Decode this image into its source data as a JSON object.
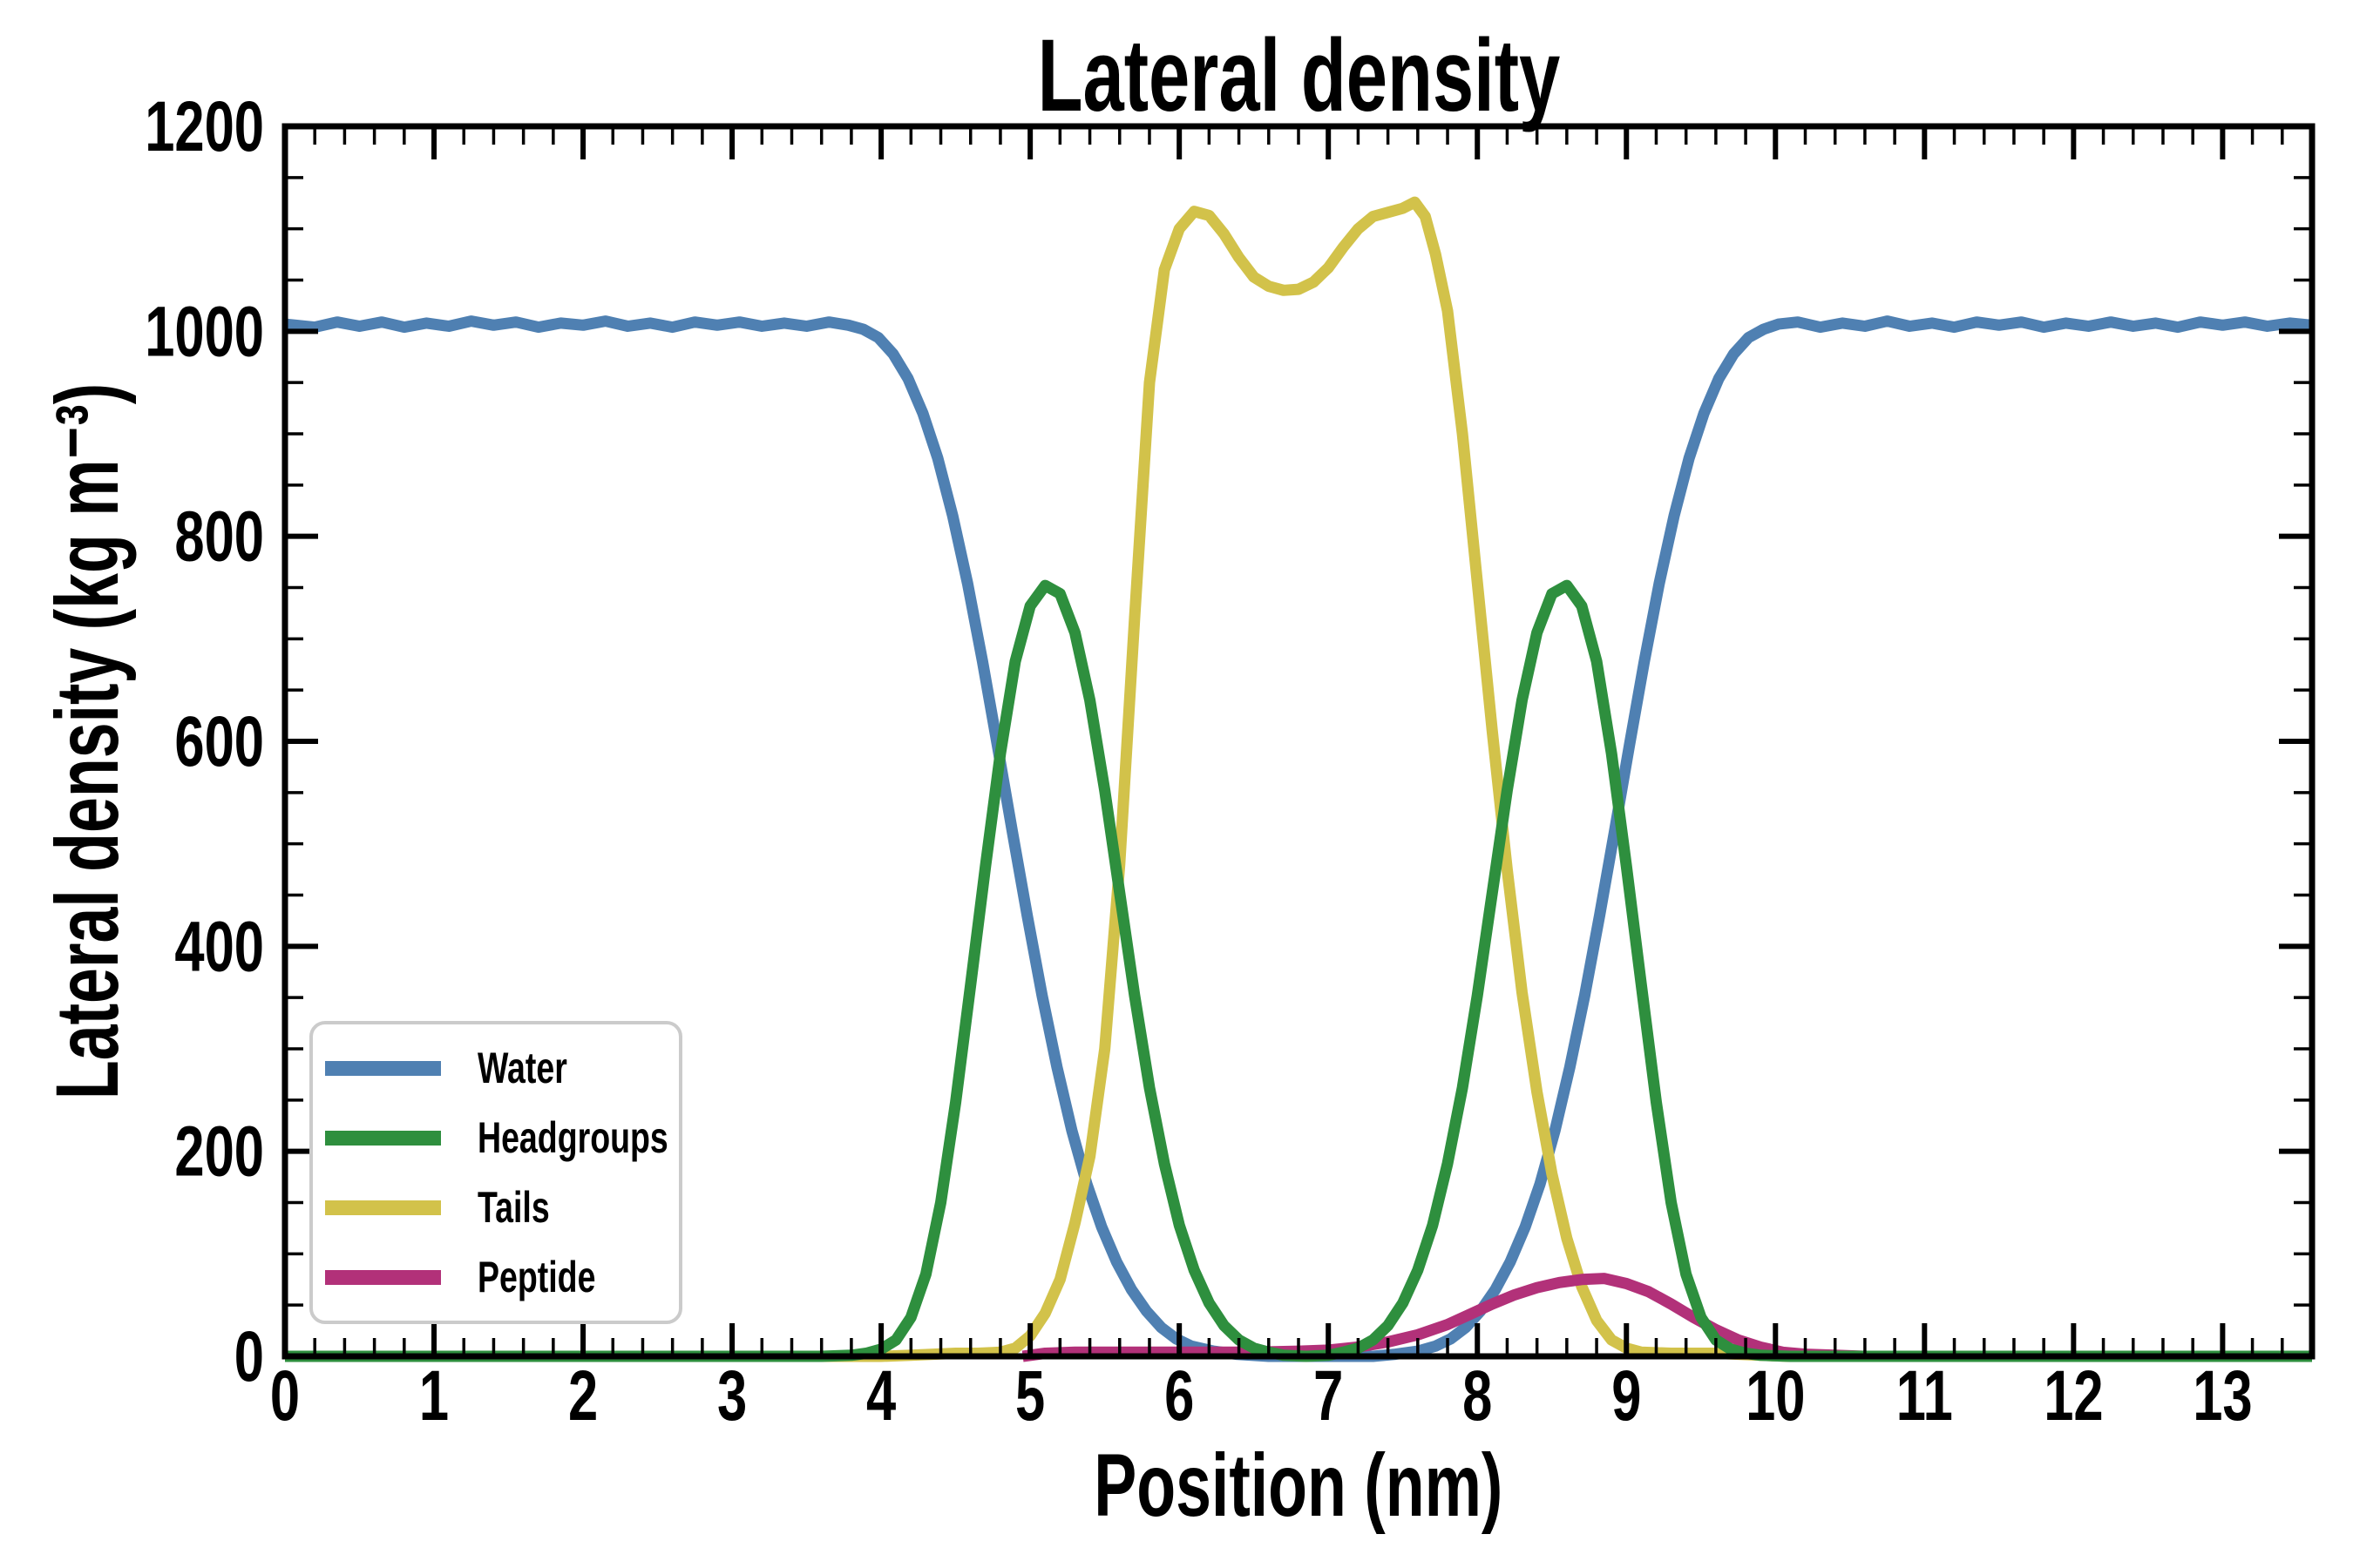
{
  "chart_data": {
    "type": "line",
    "title": "Lateral density",
    "xlabel": "Position (nm)",
    "ylabel": "Lateral density (kg m⁻³)",
    "xlim": [
      0,
      13.6
    ],
    "ylim": [
      0,
      1200
    ],
    "x_major_ticks": [
      0,
      1,
      2,
      3,
      4,
      5,
      6,
      7,
      8,
      9,
      10,
      11,
      12,
      13
    ],
    "x_minor_step": 0.2,
    "y_major_ticks": [
      0,
      200,
      400,
      600,
      800,
      1000,
      1200
    ],
    "y_minor_step": 50,
    "grid": false,
    "legend_position": "lower left",
    "axis_color": "#000000",
    "background_color": "#ffffff",
    "series": [
      {
        "name": "Water",
        "color": "#4F80B2",
        "z": 1,
        "points": [
          [
            0,
            1007
          ],
          [
            0.2,
            1004
          ],
          [
            0.35,
            1009
          ],
          [
            0.5,
            1005
          ],
          [
            0.65,
            1009
          ],
          [
            0.8,
            1004
          ],
          [
            0.95,
            1008
          ],
          [
            1.1,
            1005
          ],
          [
            1.25,
            1010
          ],
          [
            1.4,
            1006
          ],
          [
            1.55,
            1009
          ],
          [
            1.7,
            1004
          ],
          [
            1.85,
            1008
          ],
          [
            2,
            1006
          ],
          [
            2.15,
            1010
          ],
          [
            2.3,
            1005
          ],
          [
            2.45,
            1008
          ],
          [
            2.6,
            1004
          ],
          [
            2.75,
            1009
          ],
          [
            2.9,
            1006
          ],
          [
            3.05,
            1009
          ],
          [
            3.2,
            1005
          ],
          [
            3.35,
            1008
          ],
          [
            3.5,
            1005
          ],
          [
            3.65,
            1009
          ],
          [
            3.78,
            1006
          ],
          [
            3.88,
            1002
          ],
          [
            3.98,
            994
          ],
          [
            4.08,
            978
          ],
          [
            4.18,
            954
          ],
          [
            4.28,
            920
          ],
          [
            4.38,
            876
          ],
          [
            4.48,
            820
          ],
          [
            4.58,
            754
          ],
          [
            4.68,
            678
          ],
          [
            4.78,
            596
          ],
          [
            4.88,
            512
          ],
          [
            4.98,
            430
          ],
          [
            5.08,
            352
          ],
          [
            5.18,
            282
          ],
          [
            5.28,
            220
          ],
          [
            5.38,
            168
          ],
          [
            5.48,
            126
          ],
          [
            5.58,
            92
          ],
          [
            5.68,
            65
          ],
          [
            5.78,
            44
          ],
          [
            5.88,
            28
          ],
          [
            5.98,
            17
          ],
          [
            6.08,
            10
          ],
          [
            6.23,
            5
          ],
          [
            6.38,
            2
          ],
          [
            6.6,
            0
          ],
          [
            7,
            0
          ],
          [
            7.3,
            0
          ],
          [
            7.45,
            2
          ],
          [
            7.6,
            5
          ],
          [
            7.72,
            10
          ],
          [
            7.82,
            17
          ],
          [
            7.92,
            28
          ],
          [
            8.02,
            44
          ],
          [
            8.12,
            65
          ],
          [
            8.22,
            92
          ],
          [
            8.32,
            126
          ],
          [
            8.42,
            168
          ],
          [
            8.52,
            220
          ],
          [
            8.62,
            282
          ],
          [
            8.72,
            352
          ],
          [
            8.82,
            430
          ],
          [
            8.92,
            512
          ],
          [
            9.02,
            596
          ],
          [
            9.12,
            678
          ],
          [
            9.22,
            754
          ],
          [
            9.32,
            820
          ],
          [
            9.42,
            876
          ],
          [
            9.52,
            920
          ],
          [
            9.62,
            954
          ],
          [
            9.72,
            978
          ],
          [
            9.82,
            994
          ],
          [
            9.92,
            1002
          ],
          [
            10.02,
            1007
          ],
          [
            10.15,
            1009
          ],
          [
            10.3,
            1004
          ],
          [
            10.45,
            1008
          ],
          [
            10.6,
            1005
          ],
          [
            10.75,
            1010
          ],
          [
            10.9,
            1005
          ],
          [
            11.05,
            1008
          ],
          [
            11.2,
            1004
          ],
          [
            11.35,
            1009
          ],
          [
            11.5,
            1006
          ],
          [
            11.65,
            1009
          ],
          [
            11.8,
            1004
          ],
          [
            11.95,
            1008
          ],
          [
            12.1,
            1005
          ],
          [
            12.25,
            1009
          ],
          [
            12.4,
            1005
          ],
          [
            12.55,
            1008
          ],
          [
            12.7,
            1004
          ],
          [
            12.85,
            1009
          ],
          [
            13,
            1006
          ],
          [
            13.15,
            1009
          ],
          [
            13.3,
            1005
          ],
          [
            13.45,
            1008
          ],
          [
            13.6,
            1006
          ]
        ]
      },
      {
        "name": "Headgroups",
        "color": "#2E8F3E",
        "z": 4,
        "points": [
          [
            0,
            0
          ],
          [
            1,
            0
          ],
          [
            2,
            0
          ],
          [
            3,
            0
          ],
          [
            3.6,
            0
          ],
          [
            3.8,
            1
          ],
          [
            3.9,
            3
          ],
          [
            4,
            7
          ],
          [
            4.1,
            16
          ],
          [
            4.2,
            38
          ],
          [
            4.3,
            80
          ],
          [
            4.4,
            150
          ],
          [
            4.5,
            248
          ],
          [
            4.6,
            362
          ],
          [
            4.7,
            478
          ],
          [
            4.8,
            588
          ],
          [
            4.9,
            678
          ],
          [
            5,
            732
          ],
          [
            5.1,
            752
          ],
          [
            5.2,
            744
          ],
          [
            5.3,
            706
          ],
          [
            5.4,
            640
          ],
          [
            5.5,
            552
          ],
          [
            5.6,
            452
          ],
          [
            5.7,
            352
          ],
          [
            5.8,
            262
          ],
          [
            5.9,
            188
          ],
          [
            6,
            128
          ],
          [
            6.1,
            84
          ],
          [
            6.2,
            52
          ],
          [
            6.3,
            30
          ],
          [
            6.4,
            16
          ],
          [
            6.5,
            8
          ],
          [
            6.6,
            4
          ],
          [
            6.7,
            1
          ],
          [
            6.85,
            0
          ],
          [
            7,
            1
          ],
          [
            7.1,
            4
          ],
          [
            7.2,
            8
          ],
          [
            7.3,
            16
          ],
          [
            7.4,
            30
          ],
          [
            7.5,
            52
          ],
          [
            7.6,
            84
          ],
          [
            7.7,
            128
          ],
          [
            7.8,
            188
          ],
          [
            7.9,
            262
          ],
          [
            8,
            352
          ],
          [
            8.1,
            452
          ],
          [
            8.2,
            552
          ],
          [
            8.3,
            640
          ],
          [
            8.4,
            706
          ],
          [
            8.5,
            744
          ],
          [
            8.6,
            752
          ],
          [
            8.7,
            732
          ],
          [
            8.8,
            678
          ],
          [
            8.9,
            588
          ],
          [
            9,
            478
          ],
          [
            9.1,
            362
          ],
          [
            9.2,
            248
          ],
          [
            9.3,
            150
          ],
          [
            9.4,
            80
          ],
          [
            9.5,
            38
          ],
          [
            9.6,
            16
          ],
          [
            9.7,
            7
          ],
          [
            9.8,
            3
          ],
          [
            9.9,
            1
          ],
          [
            10.1,
            0
          ],
          [
            11,
            0
          ],
          [
            12,
            0
          ],
          [
            13.6,
            0
          ]
        ]
      },
      {
        "name": "Tails",
        "color": "#D2C24A",
        "z": 2,
        "points": [
          [
            0,
            0
          ],
          [
            1,
            0
          ],
          [
            2,
            0
          ],
          [
            3,
            0
          ],
          [
            4,
            0
          ],
          [
            4.2,
            1
          ],
          [
            4.35,
            2
          ],
          [
            4.5,
            3
          ],
          [
            4.65,
            3
          ],
          [
            4.8,
            4
          ],
          [
            4.9,
            8
          ],
          [
            5,
            20
          ],
          [
            5.1,
            42
          ],
          [
            5.2,
            75
          ],
          [
            5.3,
            130
          ],
          [
            5.4,
            195
          ],
          [
            5.5,
            300
          ],
          [
            5.6,
            480
          ],
          [
            5.7,
            720
          ],
          [
            5.8,
            950
          ],
          [
            5.9,
            1060
          ],
          [
            6,
            1100
          ],
          [
            6.1,
            1117
          ],
          [
            6.2,
            1113
          ],
          [
            6.3,
            1095
          ],
          [
            6.4,
            1072
          ],
          [
            6.5,
            1053
          ],
          [
            6.6,
            1044
          ],
          [
            6.7,
            1040
          ],
          [
            6.8,
            1041
          ],
          [
            6.9,
            1048
          ],
          [
            7,
            1062
          ],
          [
            7.1,
            1082
          ],
          [
            7.2,
            1100
          ],
          [
            7.3,
            1112
          ],
          [
            7.4,
            1116
          ],
          [
            7.5,
            1120
          ],
          [
            7.58,
            1126
          ],
          [
            7.65,
            1112
          ],
          [
            7.72,
            1075
          ],
          [
            7.8,
            1020
          ],
          [
            7.9,
            900
          ],
          [
            8,
            755
          ],
          [
            8.1,
            610
          ],
          [
            8.2,
            475
          ],
          [
            8.3,
            355
          ],
          [
            8.4,
            258
          ],
          [
            8.5,
            178
          ],
          [
            8.6,
            115
          ],
          [
            8.7,
            68
          ],
          [
            8.8,
            35
          ],
          [
            8.9,
            16
          ],
          [
            9,
            8
          ],
          [
            9.1,
            4
          ],
          [
            9.3,
            3
          ],
          [
            9.6,
            3
          ],
          [
            9.9,
            1
          ],
          [
            10.1,
            0
          ],
          [
            11,
            0
          ],
          [
            12,
            0
          ],
          [
            13.6,
            0
          ]
        ]
      },
      {
        "name": "Peptide",
        "color": "#B23179",
        "z": 3,
        "points": [
          [
            4.95,
            0
          ],
          [
            5.1,
            3
          ],
          [
            5.3,
            4
          ],
          [
            5.6,
            4
          ],
          [
            5.9,
            4
          ],
          [
            6.2,
            4
          ],
          [
            6.5,
            4
          ],
          [
            6.8,
            5
          ],
          [
            7,
            6
          ],
          [
            7.2,
            9
          ],
          [
            7.4,
            14
          ],
          [
            7.6,
            21
          ],
          [
            7.8,
            31
          ],
          [
            7.95,
            41
          ],
          [
            8.1,
            51
          ],
          [
            8.25,
            60
          ],
          [
            8.4,
            67
          ],
          [
            8.55,
            72
          ],
          [
            8.7,
            75
          ],
          [
            8.85,
            76
          ],
          [
            9,
            71
          ],
          [
            9.15,
            63
          ],
          [
            9.3,
            51
          ],
          [
            9.45,
            38
          ],
          [
            9.6,
            26
          ],
          [
            9.75,
            16
          ],
          [
            9.9,
            9
          ],
          [
            10.05,
            4
          ],
          [
            10.2,
            2
          ],
          [
            10.4,
            1
          ],
          [
            10.6,
            0
          ]
        ]
      }
    ]
  }
}
